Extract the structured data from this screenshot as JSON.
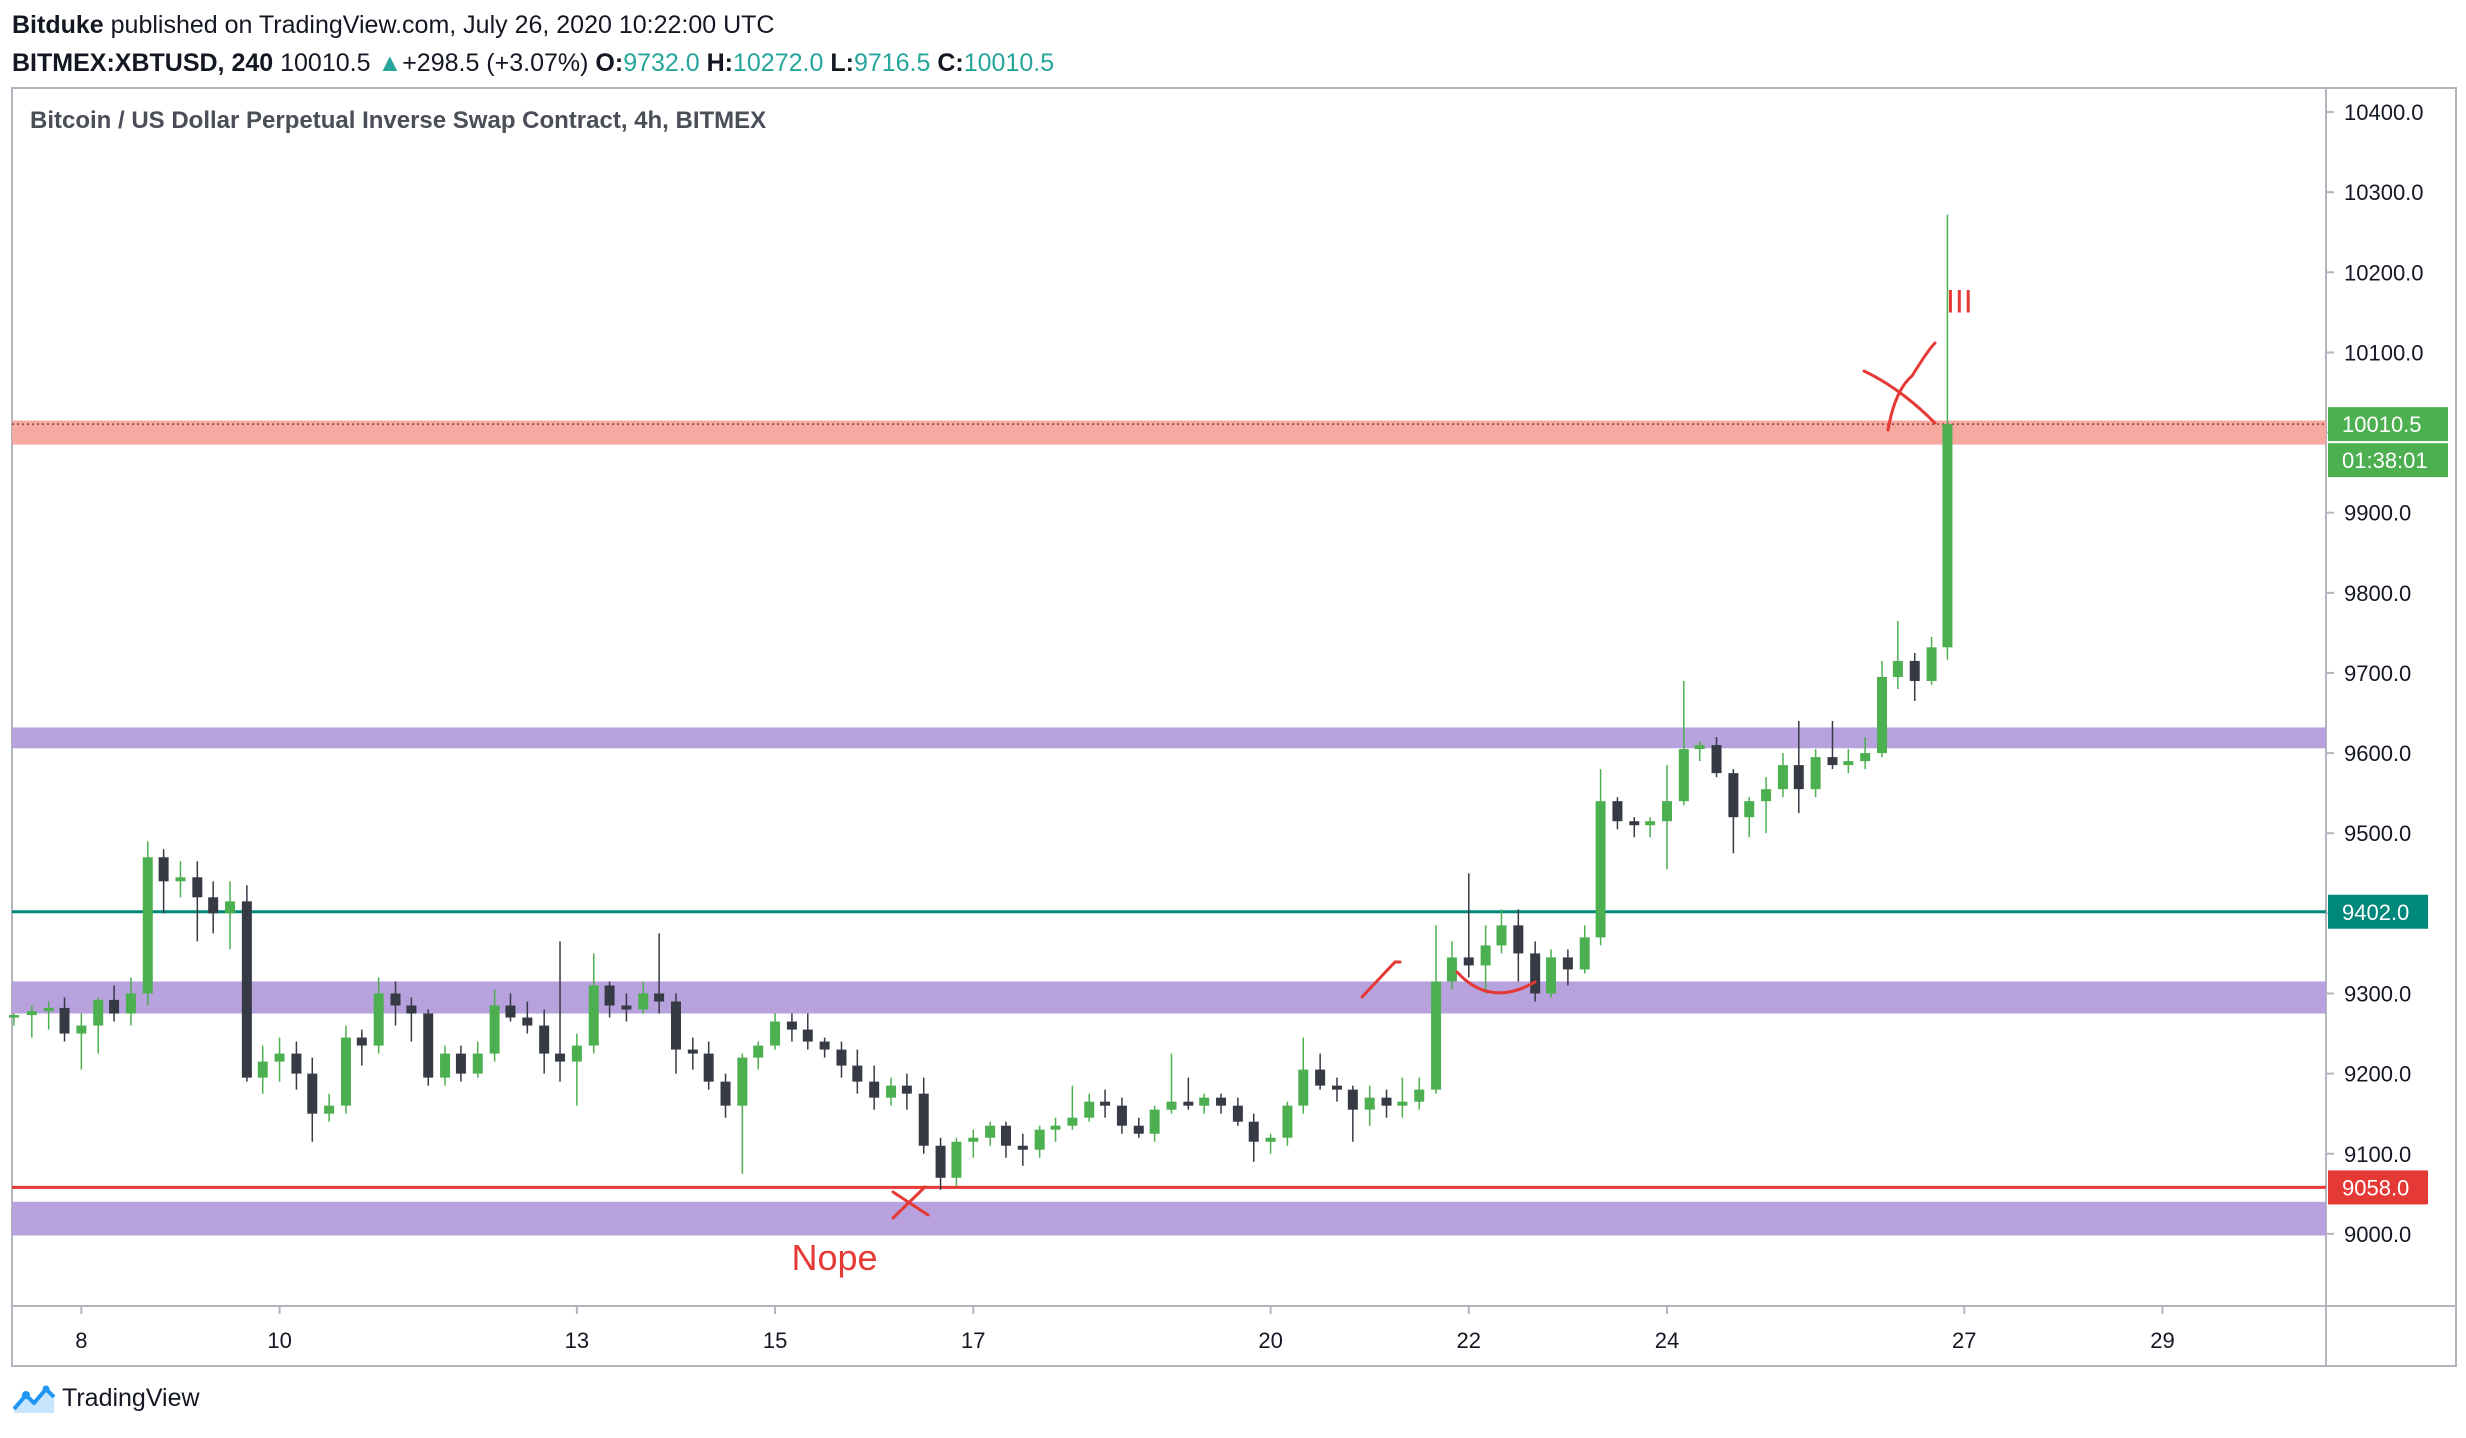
{
  "header": {
    "author": "Bitduke",
    "published": "published on TradingView.com, July 26, 2020 10:22:00 UTC",
    "symbol": "BITMEX:XBTUSD, 240",
    "last": "10010.5",
    "change": "+298.5 (+3.07%)",
    "o_label": "O:",
    "o_value": "9732.0",
    "h_label": "H:",
    "h_value": "10272.0",
    "l_label": "L:",
    "l_value": "9716.5",
    "c_label": "C:",
    "c_value": "10010.5"
  },
  "footer": {
    "brand": "TradingView"
  },
  "colors": {
    "up": "#4caf50",
    "down": "#363a45",
    "purple_zone": "#b39ddb",
    "red_zone": "#f5a49c",
    "teal_line": "#00897b",
    "red_line": "#e53935",
    "annotation": "#e53935",
    "price_badge": "#4caf50"
  },
  "chart_data": {
    "type": "candlestick",
    "title": "Bitcoin / US Dollar Perpetual Inverse Swap Contract, 4h, BITMEX",
    "ylim": [
      8910,
      10430
    ],
    "yticks": [
      9000,
      9100,
      9200,
      9300,
      9400,
      9500,
      9600,
      9700,
      9800,
      9900,
      10000,
      10100,
      10200,
      10300,
      10400
    ],
    "ytick_labels": [
      "9000.0",
      "9100.0",
      "9200.0",
      "9300.0",
      "9400.0",
      "9500.0",
      "9600.0",
      "9700.0",
      "9800.0",
      "9900.0",
      "10000.0",
      "10100.0",
      "10200.0",
      "10300.0",
      "10400.0"
    ],
    "xlim": [
      7.3,
      30.65
    ],
    "xticks": [
      8,
      10,
      13,
      15,
      17,
      20,
      22,
      24,
      27,
      29
    ],
    "xtick_labels": [
      "8",
      "10",
      "13",
      "15",
      "17",
      "20",
      "22",
      "24",
      "27",
      "29"
    ],
    "grid": false,
    "zones": [
      {
        "kind": "resistance",
        "from": 9985,
        "to": 10015
      },
      {
        "kind": "support",
        "from": 9606,
        "to": 9632
      },
      {
        "kind": "support",
        "from": 9275,
        "to": 9315
      },
      {
        "kind": "support",
        "from": 8998,
        "to": 9040
      }
    ],
    "hlines": [
      {
        "value": 9402,
        "label": "9402.0",
        "color": "#00897b"
      },
      {
        "value": 9058,
        "label": "9058.0",
        "color": "#e53935"
      }
    ],
    "last_price": {
      "value": 10010.5,
      "label": "10010.5",
      "countdown": "01:38:01"
    },
    "annotations": [
      {
        "text": "Nope",
        "x": 15.6,
        "y": 8955
      },
      {
        "text": "III",
        "x": 26.95,
        "y": 10150
      }
    ],
    "candles": [
      [
        7.32,
        9270,
        9275,
        9260,
        9273
      ],
      [
        7.5,
        9273,
        9285,
        9245,
        9278
      ],
      [
        7.67,
        9278,
        9290,
        9255,
        9282
      ],
      [
        7.83,
        9282,
        9295,
        9240,
        9250
      ],
      [
        8.0,
        9250,
        9275,
        9205,
        9260
      ],
      [
        8.17,
        9260,
        9295,
        9225,
        9292
      ],
      [
        8.33,
        9292,
        9310,
        9265,
        9275
      ],
      [
        8.5,
        9275,
        9320,
        9260,
        9300
      ],
      [
        8.67,
        9300,
        9490,
        9285,
        9470
      ],
      [
        8.83,
        9470,
        9480,
        9400,
        9440
      ],
      [
        9.0,
        9440,
        9465,
        9420,
        9445
      ],
      [
        9.17,
        9445,
        9465,
        9365,
        9420
      ],
      [
        9.33,
        9420,
        9440,
        9375,
        9400
      ],
      [
        9.5,
        9400,
        9440,
        9355,
        9415
      ],
      [
        9.67,
        9415,
        9435,
        9190,
        9195
      ],
      [
        9.83,
        9195,
        9235,
        9175,
        9215
      ],
      [
        10.0,
        9215,
        9245,
        9190,
        9225
      ],
      [
        10.17,
        9225,
        9240,
        9180,
        9200
      ],
      [
        10.33,
        9200,
        9220,
        9115,
        9150
      ],
      [
        10.5,
        9150,
        9175,
        9140,
        9160
      ],
      [
        10.67,
        9160,
        9260,
        9150,
        9245
      ],
      [
        10.83,
        9245,
        9255,
        9210,
        9235
      ],
      [
        11.0,
        9235,
        9320,
        9225,
        9300
      ],
      [
        11.17,
        9300,
        9315,
        9260,
        9285
      ],
      [
        11.33,
        9285,
        9295,
        9240,
        9275
      ],
      [
        11.5,
        9275,
        9280,
        9185,
        9195
      ],
      [
        11.67,
        9195,
        9235,
        9185,
        9225
      ],
      [
        11.83,
        9225,
        9235,
        9190,
        9200
      ],
      [
        12.0,
        9200,
        9240,
        9195,
        9225
      ],
      [
        12.17,
        9225,
        9305,
        9215,
        9285
      ],
      [
        12.33,
        9285,
        9300,
        9265,
        9270
      ],
      [
        12.5,
        9270,
        9290,
        9250,
        9260
      ],
      [
        12.67,
        9260,
        9280,
        9200,
        9225
      ],
      [
        12.83,
        9225,
        9365,
        9190,
        9215
      ],
      [
        13.0,
        9215,
        9250,
        9160,
        9235
      ],
      [
        13.17,
        9235,
        9350,
        9225,
        9310
      ],
      [
        13.33,
        9310,
        9315,
        9270,
        9285
      ],
      [
        13.5,
        9285,
        9300,
        9265,
        9280
      ],
      [
        13.67,
        9280,
        9315,
        9275,
        9300
      ],
      [
        13.83,
        9300,
        9375,
        9275,
        9290
      ],
      [
        14.0,
        9290,
        9300,
        9200,
        9230
      ],
      [
        14.17,
        9230,
        9245,
        9205,
        9225
      ],
      [
        14.33,
        9225,
        9240,
        9180,
        9190
      ],
      [
        14.5,
        9190,
        9200,
        9145,
        9160
      ],
      [
        14.67,
        9160,
        9225,
        9075,
        9220
      ],
      [
        14.83,
        9220,
        9240,
        9205,
        9235
      ],
      [
        15.0,
        9235,
        9275,
        9230,
        9265
      ],
      [
        15.17,
        9265,
        9275,
        9240,
        9255
      ],
      [
        15.33,
        9255,
        9275,
        9230,
        9240
      ],
      [
        15.5,
        9240,
        9245,
        9220,
        9230
      ],
      [
        15.67,
        9230,
        9240,
        9195,
        9210
      ],
      [
        15.83,
        9210,
        9230,
        9175,
        9190
      ],
      [
        16.0,
        9190,
        9210,
        9155,
        9170
      ],
      [
        16.17,
        9170,
        9195,
        9160,
        9185
      ],
      [
        16.33,
        9185,
        9200,
        9155,
        9175
      ],
      [
        16.5,
        9175,
        9195,
        9100,
        9110
      ],
      [
        16.67,
        9110,
        9120,
        9055,
        9070
      ],
      [
        16.83,
        9070,
        9120,
        9060,
        9115
      ],
      [
        17.0,
        9115,
        9130,
        9095,
        9120
      ],
      [
        17.17,
        9120,
        9140,
        9110,
        9135
      ],
      [
        17.33,
        9135,
        9140,
        9095,
        9110
      ],
      [
        17.5,
        9110,
        9125,
        9085,
        9105
      ],
      [
        17.67,
        9105,
        9135,
        9095,
        9130
      ],
      [
        17.83,
        9130,
        9145,
        9115,
        9135
      ],
      [
        18.0,
        9135,
        9185,
        9130,
        9145
      ],
      [
        18.17,
        9145,
        9175,
        9140,
        9165
      ],
      [
        18.33,
        9165,
        9180,
        9145,
        9160
      ],
      [
        18.5,
        9160,
        9170,
        9125,
        9135
      ],
      [
        18.67,
        9135,
        9145,
        9120,
        9125
      ],
      [
        18.83,
        9125,
        9160,
        9115,
        9155
      ],
      [
        19.0,
        9155,
        9225,
        9150,
        9165
      ],
      [
        19.17,
        9165,
        9195,
        9155,
        9160
      ],
      [
        19.33,
        9160,
        9175,
        9150,
        9170
      ],
      [
        19.5,
        9170,
        9175,
        9150,
        9160
      ],
      [
        19.67,
        9160,
        9170,
        9135,
        9140
      ],
      [
        19.83,
        9140,
        9150,
        9090,
        9115
      ],
      [
        20.0,
        9115,
        9125,
        9100,
        9120
      ],
      [
        20.17,
        9120,
        9165,
        9110,
        9160
      ],
      [
        20.33,
        9160,
        9245,
        9150,
        9205
      ],
      [
        20.5,
        9205,
        9225,
        9180,
        9185
      ],
      [
        20.67,
        9185,
        9195,
        9165,
        9180
      ],
      [
        20.83,
        9180,
        9185,
        9115,
        9155
      ],
      [
        21.0,
        9155,
        9185,
        9135,
        9170
      ],
      [
        21.17,
        9170,
        9180,
        9145,
        9160
      ],
      [
        21.33,
        9160,
        9195,
        9145,
        9165
      ],
      [
        21.5,
        9165,
        9195,
        9155,
        9180
      ],
      [
        21.67,
        9180,
        9385,
        9175,
        9315
      ],
      [
        21.83,
        9315,
        9365,
        9305,
        9345
      ],
      [
        22.0,
        9345,
        9450,
        9320,
        9335
      ],
      [
        22.17,
        9335,
        9385,
        9300,
        9360
      ],
      [
        22.33,
        9360,
        9405,
        9350,
        9385
      ],
      [
        22.5,
        9385,
        9405,
        9315,
        9350
      ],
      [
        22.67,
        9350,
        9365,
        9290,
        9300
      ],
      [
        22.83,
        9300,
        9355,
        9295,
        9345
      ],
      [
        23.0,
        9345,
        9355,
        9310,
        9330
      ],
      [
        23.17,
        9330,
        9385,
        9325,
        9370
      ],
      [
        23.33,
        9370,
        9580,
        9360,
        9540
      ],
      [
        23.5,
        9540,
        9545,
        9505,
        9515
      ],
      [
        23.67,
        9515,
        9520,
        9495,
        9510
      ],
      [
        23.83,
        9510,
        9520,
        9495,
        9515
      ],
      [
        24.0,
        9515,
        9585,
        9455,
        9540
      ],
      [
        24.17,
        9540,
        9690,
        9535,
        9605
      ],
      [
        24.33,
        9605,
        9615,
        9590,
        9610
      ],
      [
        24.5,
        9610,
        9620,
        9570,
        9575
      ],
      [
        24.67,
        9575,
        9580,
        9475,
        9520
      ],
      [
        24.83,
        9520,
        9545,
        9495,
        9540
      ],
      [
        25.0,
        9540,
        9570,
        9500,
        9555
      ],
      [
        25.17,
        9555,
        9600,
        9545,
        9585
      ],
      [
        25.33,
        9585,
        9640,
        9525,
        9555
      ],
      [
        25.5,
        9555,
        9605,
        9545,
        9595
      ],
      [
        25.67,
        9595,
        9640,
        9580,
        9585
      ],
      [
        25.83,
        9585,
        9605,
        9575,
        9590
      ],
      [
        26.0,
        9590,
        9620,
        9580,
        9600
      ],
      [
        26.17,
        9600,
        9715,
        9595,
        9695
      ],
      [
        26.33,
        9695,
        9765,
        9680,
        9715
      ],
      [
        26.5,
        9715,
        9725,
        9665,
        9690
      ],
      [
        26.67,
        9690,
        9745,
        9685,
        9732
      ],
      [
        26.83,
        9732,
        10272,
        9716.5,
        10010.5
      ]
    ]
  }
}
